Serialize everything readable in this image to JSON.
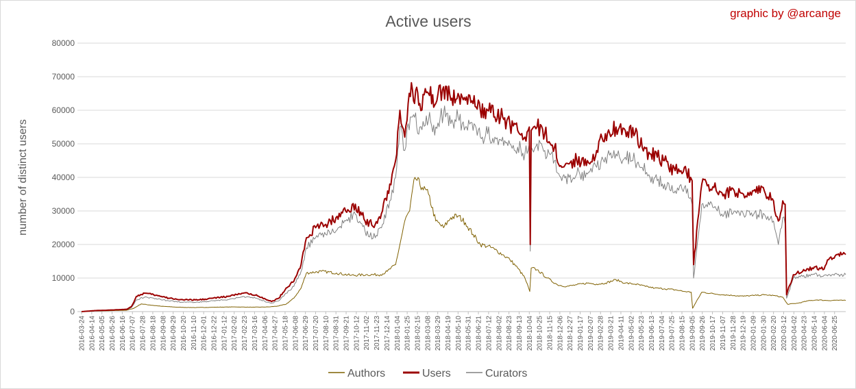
{
  "chart_data": {
    "type": "line",
    "title": "Active users",
    "credit": "graphic by @arcange",
    "xlabel": "",
    "ylabel": "number of distinct users",
    "ylim": [
      0,
      80000
    ],
    "yticks": [
      "0",
      "10000",
      "20000",
      "30000",
      "40000",
      "50000",
      "60000",
      "70000",
      "80000"
    ],
    "grid": "horizontal",
    "legend_position": "bottom",
    "x_start": "2016-03-24",
    "x_end": "2020-07-18",
    "x_tick_labels": [
      "2016-03-24",
      "2016-04-14",
      "2016-05-05",
      "2016-05-26",
      "2016-06-16",
      "2016-07-07",
      "2016-07-28",
      "2016-08-18",
      "2016-09-08",
      "2016-09-29",
      "2016-10-20",
      "2016-11-10",
      "2016-12-01",
      "2016-12-22",
      "2017-01-12",
      "2017-02-02",
      "2017-02-23",
      "2017-03-16",
      "2017-04-06",
      "2017-04-27",
      "2017-05-18",
      "2017-06-08",
      "2017-06-29",
      "2017-07-20",
      "2017-08-10",
      "2017-08-31",
      "2017-09-21",
      "2017-10-12",
      "2017-11-02",
      "2017-11-23",
      "2017-12-14",
      "2018-01-04",
      "2018-01-25",
      "2018-02-15",
      "2018-03-08",
      "2018-03-29",
      "2018-04-19",
      "2018-05-10",
      "2018-05-31",
      "2018-06-21",
      "2018-07-12",
      "2018-08-02",
      "2018-08-23",
      "2018-09-13",
      "2018-10-04",
      "2018-10-25",
      "2018-11-15",
      "2018-12-06",
      "2018-12-27",
      "2019-01-17",
      "2019-02-07",
      "2019-02-28",
      "2019-03-21",
      "2019-04-11",
      "2019-05-02",
      "2019-05-23",
      "2019-06-13",
      "2019-07-04",
      "2019-07-25",
      "2019-08-15",
      "2019-09-05",
      "2019-09-26",
      "2019-10-17",
      "2019-11-07",
      "2019-11-28",
      "2019-12-19",
      "2020-01-09",
      "2020-01-30",
      "2020-02-20",
      "2020-03-12",
      "2020-04-02",
      "2020-04-23",
      "2020-05-14",
      "2020-06-04",
      "2020-06-25"
    ],
    "series": [
      {
        "name": "Authors",
        "color": "#7f6000",
        "x": [
          "2016-03-24",
          "2016-04-20",
          "2016-05-30",
          "2016-06-25",
          "2016-07-10",
          "2016-07-25",
          "2016-08-10",
          "2016-09-05",
          "2016-10-10",
          "2016-11-15",
          "2016-12-20",
          "2017-02-01",
          "2017-03-15",
          "2017-04-15",
          "2017-05-05",
          "2017-05-20",
          "2017-06-05",
          "2017-06-20",
          "2017-07-01",
          "2017-08-01",
          "2017-09-01",
          "2017-10-01",
          "2017-11-01",
          "2017-12-01",
          "2017-12-15",
          "2018-01-01",
          "2018-01-10",
          "2018-01-20",
          "2018-01-30",
          "2018-02-10",
          "2018-02-25",
          "2018-03-10",
          "2018-03-25",
          "2018-04-10",
          "2018-04-25",
          "2018-05-10",
          "2018-05-25",
          "2018-06-10",
          "2018-06-25",
          "2018-07-10",
          "2018-07-25",
          "2018-08-10",
          "2018-08-25",
          "2018-09-10",
          "2018-09-25",
          "2018-10-05",
          "2018-10-08",
          "2018-10-20",
          "2018-11-10",
          "2018-12-01",
          "2018-12-20",
          "2019-01-10",
          "2019-02-01",
          "2019-02-20",
          "2019-03-10",
          "2019-04-01",
          "2019-04-20",
          "2019-05-10",
          "2019-06-01",
          "2019-06-20",
          "2019-07-10",
          "2019-08-01",
          "2019-08-20",
          "2019-09-03",
          "2019-09-06",
          "2019-09-25",
          "2019-10-20",
          "2019-11-10",
          "2019-12-01",
          "2019-12-20",
          "2020-01-10",
          "2020-02-01",
          "2020-02-20",
          "2020-03-10",
          "2020-03-16",
          "2020-03-20",
          "2020-04-10",
          "2020-05-01",
          "2020-05-20",
          "2020-06-10",
          "2020-07-01",
          "2020-07-18"
        ],
        "values": [
          0,
          200,
          300,
          400,
          1000,
          2300,
          2000,
          1600,
          1300,
          1200,
          1300,
          1400,
          1300,
          1400,
          1700,
          2200,
          4000,
          7000,
          11500,
          12000,
          11500,
          10800,
          11000,
          11000,
          12000,
          14000,
          20000,
          27000,
          30000,
          40000,
          37000,
          35000,
          27000,
          25000,
          28000,
          28500,
          26500,
          23000,
          20000,
          19500,
          18500,
          17000,
          15500,
          13000,
          10000,
          6000,
          13000,
          12500,
          10000,
          8000,
          7500,
          8000,
          8500,
          8200,
          8500,
          9500,
          8500,
          8200,
          7500,
          7000,
          6800,
          6500,
          6000,
          5800,
          1000,
          5800,
          5300,
          5000,
          4800,
          4600,
          4800,
          5000,
          4800,
          4300,
          3000,
          2200,
          2500,
          3200,
          3500,
          3300,
          3400,
          3300
        ]
      },
      {
        "name": "Users",
        "color": "#9b0000",
        "x": [
          "2016-03-24",
          "2016-04-20",
          "2016-05-30",
          "2016-06-25",
          "2016-07-05",
          "2016-07-15",
          "2016-08-01",
          "2016-08-20",
          "2016-09-20",
          "2016-10-20",
          "2016-11-20",
          "2016-12-20",
          "2017-01-20",
          "2017-02-20",
          "2017-03-20",
          "2017-04-10",
          "2017-04-20",
          "2017-05-05",
          "2017-05-20",
          "2017-06-05",
          "2017-06-20",
          "2017-07-01",
          "2017-07-20",
          "2017-08-10",
          "2017-08-31",
          "2017-09-20",
          "2017-10-10",
          "2017-10-30",
          "2017-11-20",
          "2017-12-05",
          "2017-12-20",
          "2018-01-01",
          "2018-01-10",
          "2018-01-20",
          "2018-01-27",
          "2018-02-05",
          "2018-02-20",
          "2018-03-10",
          "2018-03-25",
          "2018-04-10",
          "2018-04-25",
          "2018-05-10",
          "2018-05-25",
          "2018-06-10",
          "2018-06-25",
          "2018-07-10",
          "2018-07-25",
          "2018-08-10",
          "2018-08-25",
          "2018-09-10",
          "2018-09-25",
          "2018-10-04",
          "2018-10-06",
          "2018-10-08",
          "2018-10-20",
          "2018-11-05",
          "2018-11-25",
          "2018-12-10",
          "2018-12-25",
          "2019-01-10",
          "2019-02-01",
          "2019-02-20",
          "2019-03-10",
          "2019-04-01",
          "2019-04-20",
          "2019-05-10",
          "2019-05-25",
          "2019-06-10",
          "2019-06-25",
          "2019-07-10",
          "2019-08-01",
          "2019-08-20",
          "2019-09-02",
          "2019-09-05",
          "2019-09-08",
          "2019-09-25",
          "2019-10-20",
          "2019-11-10",
          "2019-12-01",
          "2019-12-20",
          "2020-01-10",
          "2020-02-01",
          "2020-02-20",
          "2020-03-01",
          "2020-03-10",
          "2020-03-15",
          "2020-03-18",
          "2020-04-01",
          "2020-04-20",
          "2020-05-10",
          "2020-05-25",
          "2020-06-01",
          "2020-06-15",
          "2020-07-01",
          "2020-07-18"
        ],
        "values": [
          0,
          300,
          500,
          700,
          1500,
          4500,
          5500,
          5000,
          4000,
          3500,
          3500,
          4000,
          4500,
          5500,
          5000,
          3500,
          3000,
          4000,
          7000,
          9000,
          14000,
          22000,
          25000,
          26000,
          28000,
          30000,
          32000,
          27000,
          26000,
          30000,
          38000,
          45000,
          60000,
          52000,
          62000,
          66000,
          62000,
          65000,
          62000,
          67000,
          63000,
          65000,
          63000,
          62000,
          60000,
          60000,
          58000,
          58000,
          56000,
          54000,
          52000,
          55000,
          20000,
          54000,
          55000,
          53000,
          49000,
          43000,
          44000,
          45000,
          45000,
          48000,
          53000,
          55000,
          54000,
          53000,
          49000,
          47000,
          46000,
          45000,
          42000,
          43000,
          40000,
          39000,
          14000,
          38000,
          37000,
          35000,
          36000,
          35000,
          36000,
          36000,
          33000,
          27000,
          33000,
          32000,
          5000,
          11000,
          12000,
          13000,
          13000,
          12500,
          16000,
          17000,
          17000
        ]
      },
      {
        "name": "Curators",
        "color": "#808080",
        "x": [
          "2016-03-24",
          "2016-04-20",
          "2016-05-30",
          "2016-06-25",
          "2016-07-05",
          "2016-07-15",
          "2016-08-01",
          "2016-08-20",
          "2016-09-20",
          "2016-10-20",
          "2016-11-20",
          "2016-12-20",
          "2017-01-20",
          "2017-02-20",
          "2017-03-20",
          "2017-04-10",
          "2017-04-20",
          "2017-05-05",
          "2017-05-20",
          "2017-06-05",
          "2017-06-20",
          "2017-07-01",
          "2017-07-20",
          "2017-08-10",
          "2017-08-31",
          "2017-09-20",
          "2017-10-10",
          "2017-10-30",
          "2017-11-20",
          "2017-12-05",
          "2017-12-20",
          "2018-01-01",
          "2018-01-10",
          "2018-01-20",
          "2018-01-27",
          "2018-02-05",
          "2018-02-20",
          "2018-03-10",
          "2018-03-25",
          "2018-04-10",
          "2018-04-25",
          "2018-05-10",
          "2018-05-25",
          "2018-06-10",
          "2018-06-25",
          "2018-07-10",
          "2018-07-25",
          "2018-08-10",
          "2018-08-25",
          "2018-09-10",
          "2018-09-25",
          "2018-10-04",
          "2018-10-06",
          "2018-10-08",
          "2018-10-20",
          "2018-11-05",
          "2018-11-25",
          "2018-12-10",
          "2018-12-25",
          "2019-01-10",
          "2019-02-01",
          "2019-02-20",
          "2019-03-10",
          "2019-04-01",
          "2019-04-20",
          "2019-05-10",
          "2019-05-25",
          "2019-06-10",
          "2019-06-25",
          "2019-07-10",
          "2019-08-01",
          "2019-08-20",
          "2019-09-02",
          "2019-09-05",
          "2019-09-08",
          "2019-09-25",
          "2019-10-20",
          "2019-11-10",
          "2019-12-01",
          "2019-12-20",
          "2020-01-10",
          "2020-02-01",
          "2020-02-20",
          "2020-03-01",
          "2020-03-10",
          "2020-03-15",
          "2020-03-18",
          "2020-04-01",
          "2020-04-20",
          "2020-05-10",
          "2020-05-25",
          "2020-06-01",
          "2020-06-15",
          "2020-07-01",
          "2020-07-18"
        ],
        "values": [
          0,
          200,
          400,
          500,
          1200,
          3500,
          4300,
          4000,
          3200,
          2800,
          2800,
          3200,
          3600,
          4500,
          4000,
          2800,
          2500,
          3200,
          5500,
          7500,
          12000,
          19000,
          22000,
          23000,
          24000,
          27000,
          29000,
          24000,
          22000,
          26000,
          33000,
          40000,
          55000,
          48000,
          56000,
          58000,
          55000,
          57000,
          55000,
          59000,
          56000,
          58000,
          55000,
          54000,
          52000,
          53000,
          52000,
          52000,
          50000,
          49000,
          47000,
          50000,
          18000,
          49000,
          50000,
          48000,
          45000,
          39000,
          40000,
          41000,
          41000,
          43000,
          46000,
          47000,
          46000,
          45000,
          43000,
          40000,
          39000,
          38000,
          36000,
          37000,
          34000,
          32000,
          10000,
          32000,
          31000,
          29000,
          30000,
          29000,
          29000,
          29000,
          27000,
          20000,
          28000,
          26000,
          4000,
          10000,
          10500,
          11000,
          11000,
          10500,
          11000,
          11000,
          11000
        ]
      }
    ]
  }
}
